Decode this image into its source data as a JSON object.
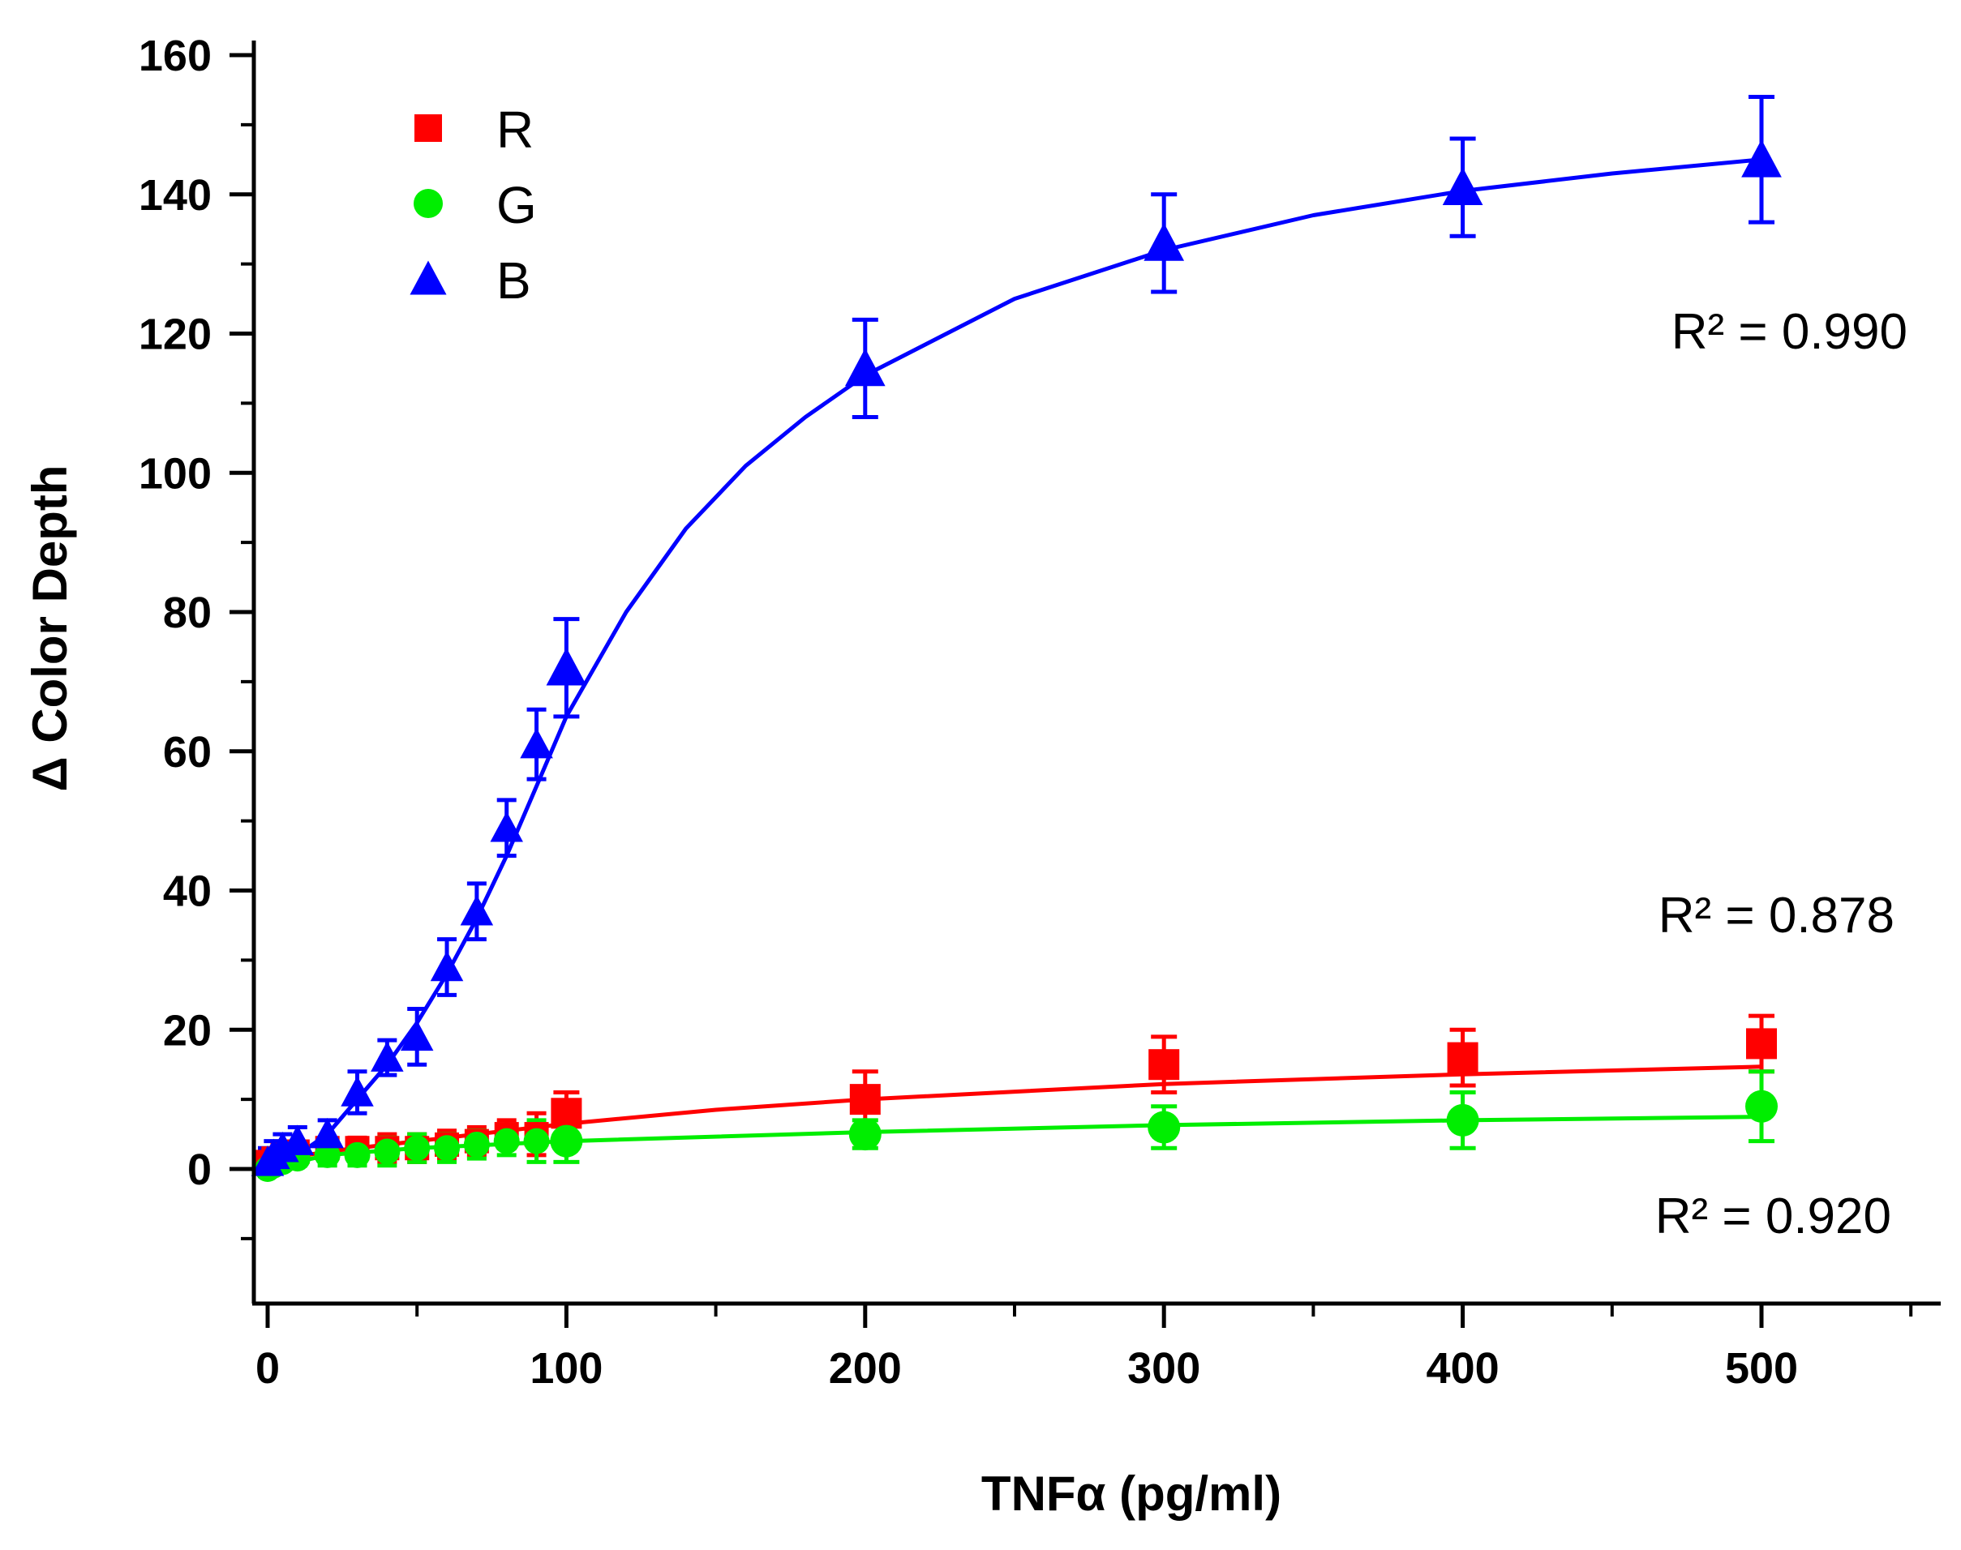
{
  "chart_data": {
    "type": "line",
    "title": "",
    "xlabel": "TNFα (pg/ml)",
    "ylabel": "Δ Color Depth",
    "xlim": [
      -5,
      560
    ],
    "ylim": [
      -20,
      160
    ],
    "xticks": [
      0,
      100,
      200,
      300,
      400,
      500
    ],
    "yticks": [
      0,
      20,
      40,
      60,
      80,
      100,
      120,
      140,
      160
    ],
    "grid": false,
    "legend_position": "top-left",
    "series": [
      {
        "name": "R",
        "marker": "square",
        "color": "#ff0000",
        "x": [
          0,
          2,
          5,
          10,
          20,
          30,
          40,
          50,
          60,
          70,
          80,
          90,
          100,
          200,
          300,
          400,
          500
        ],
        "y": [
          1,
          1.5,
          2,
          2.5,
          3,
          3,
          3,
          3,
          3.5,
          4,
          5,
          5,
          8,
          10,
          15,
          16,
          18
        ],
        "err": [
          1,
          1,
          1,
          1,
          1.5,
          1.5,
          2,
          2,
          2,
          2,
          2,
          3,
          3,
          4,
          4,
          4,
          4
        ],
        "fit": [
          [
            0,
            1
          ],
          [
            20,
            2.5
          ],
          [
            50,
            4
          ],
          [
            100,
            6.5
          ],
          [
            150,
            8.5
          ],
          [
            200,
            10
          ],
          [
            300,
            12.2
          ],
          [
            400,
            13.6
          ],
          [
            500,
            14.7
          ]
        ],
        "r2": "R² = 0.878"
      },
      {
        "name": "G",
        "marker": "circle",
        "color": "#00ee00",
        "x": [
          0,
          2,
          5,
          10,
          20,
          30,
          40,
          50,
          60,
          70,
          80,
          90,
          100,
          200,
          300,
          400,
          500
        ],
        "y": [
          0,
          0.5,
          1,
          1.5,
          2,
          2,
          2.5,
          3,
          3,
          3.5,
          4,
          4,
          4,
          5,
          6,
          7,
          9
        ],
        "err": [
          1,
          1,
          1,
          1,
          1.5,
          1.5,
          2,
          2,
          2,
          2,
          2,
          3,
          3,
          2,
          3,
          4,
          5
        ],
        "fit": [
          [
            0,
            0
          ],
          [
            20,
            2
          ],
          [
            50,
            3
          ],
          [
            100,
            4
          ],
          [
            200,
            5.3
          ],
          [
            300,
            6.3
          ],
          [
            400,
            7
          ],
          [
            500,
            7.5
          ]
        ],
        "r2": "R² = 0.920"
      },
      {
        "name": "B",
        "marker": "triangle",
        "color": "#0000ff",
        "x": [
          0,
          2,
          5,
          10,
          20,
          30,
          40,
          50,
          60,
          70,
          80,
          90,
          100,
          200,
          300,
          400,
          500
        ],
        "y": [
          1,
          2,
          3,
          4,
          5,
          11,
          16,
          19,
          29,
          37,
          49,
          61,
          72,
          115,
          133,
          141,
          145
        ],
        "err": [
          2,
          2,
          2,
          2,
          2,
          3,
          2.5,
          4,
          4,
          4,
          4,
          5,
          7,
          7,
          7,
          7,
          9
        ],
        "fit": [
          [
            0,
            0
          ],
          [
            10,
            2
          ],
          [
            20,
            5
          ],
          [
            30,
            10
          ],
          [
            40,
            15
          ],
          [
            50,
            21
          ],
          [
            60,
            28
          ],
          [
            70,
            36
          ],
          [
            80,
            45
          ],
          [
            90,
            55
          ],
          [
            100,
            65
          ],
          [
            120,
            80
          ],
          [
            140,
            92
          ],
          [
            160,
            101
          ],
          [
            180,
            108
          ],
          [
            200,
            114
          ],
          [
            250,
            125
          ],
          [
            300,
            132
          ],
          [
            350,
            137
          ],
          [
            400,
            140.5
          ],
          [
            450,
            143
          ],
          [
            500,
            145
          ]
        ],
        "r2": "R² = 0.990"
      }
    ]
  }
}
